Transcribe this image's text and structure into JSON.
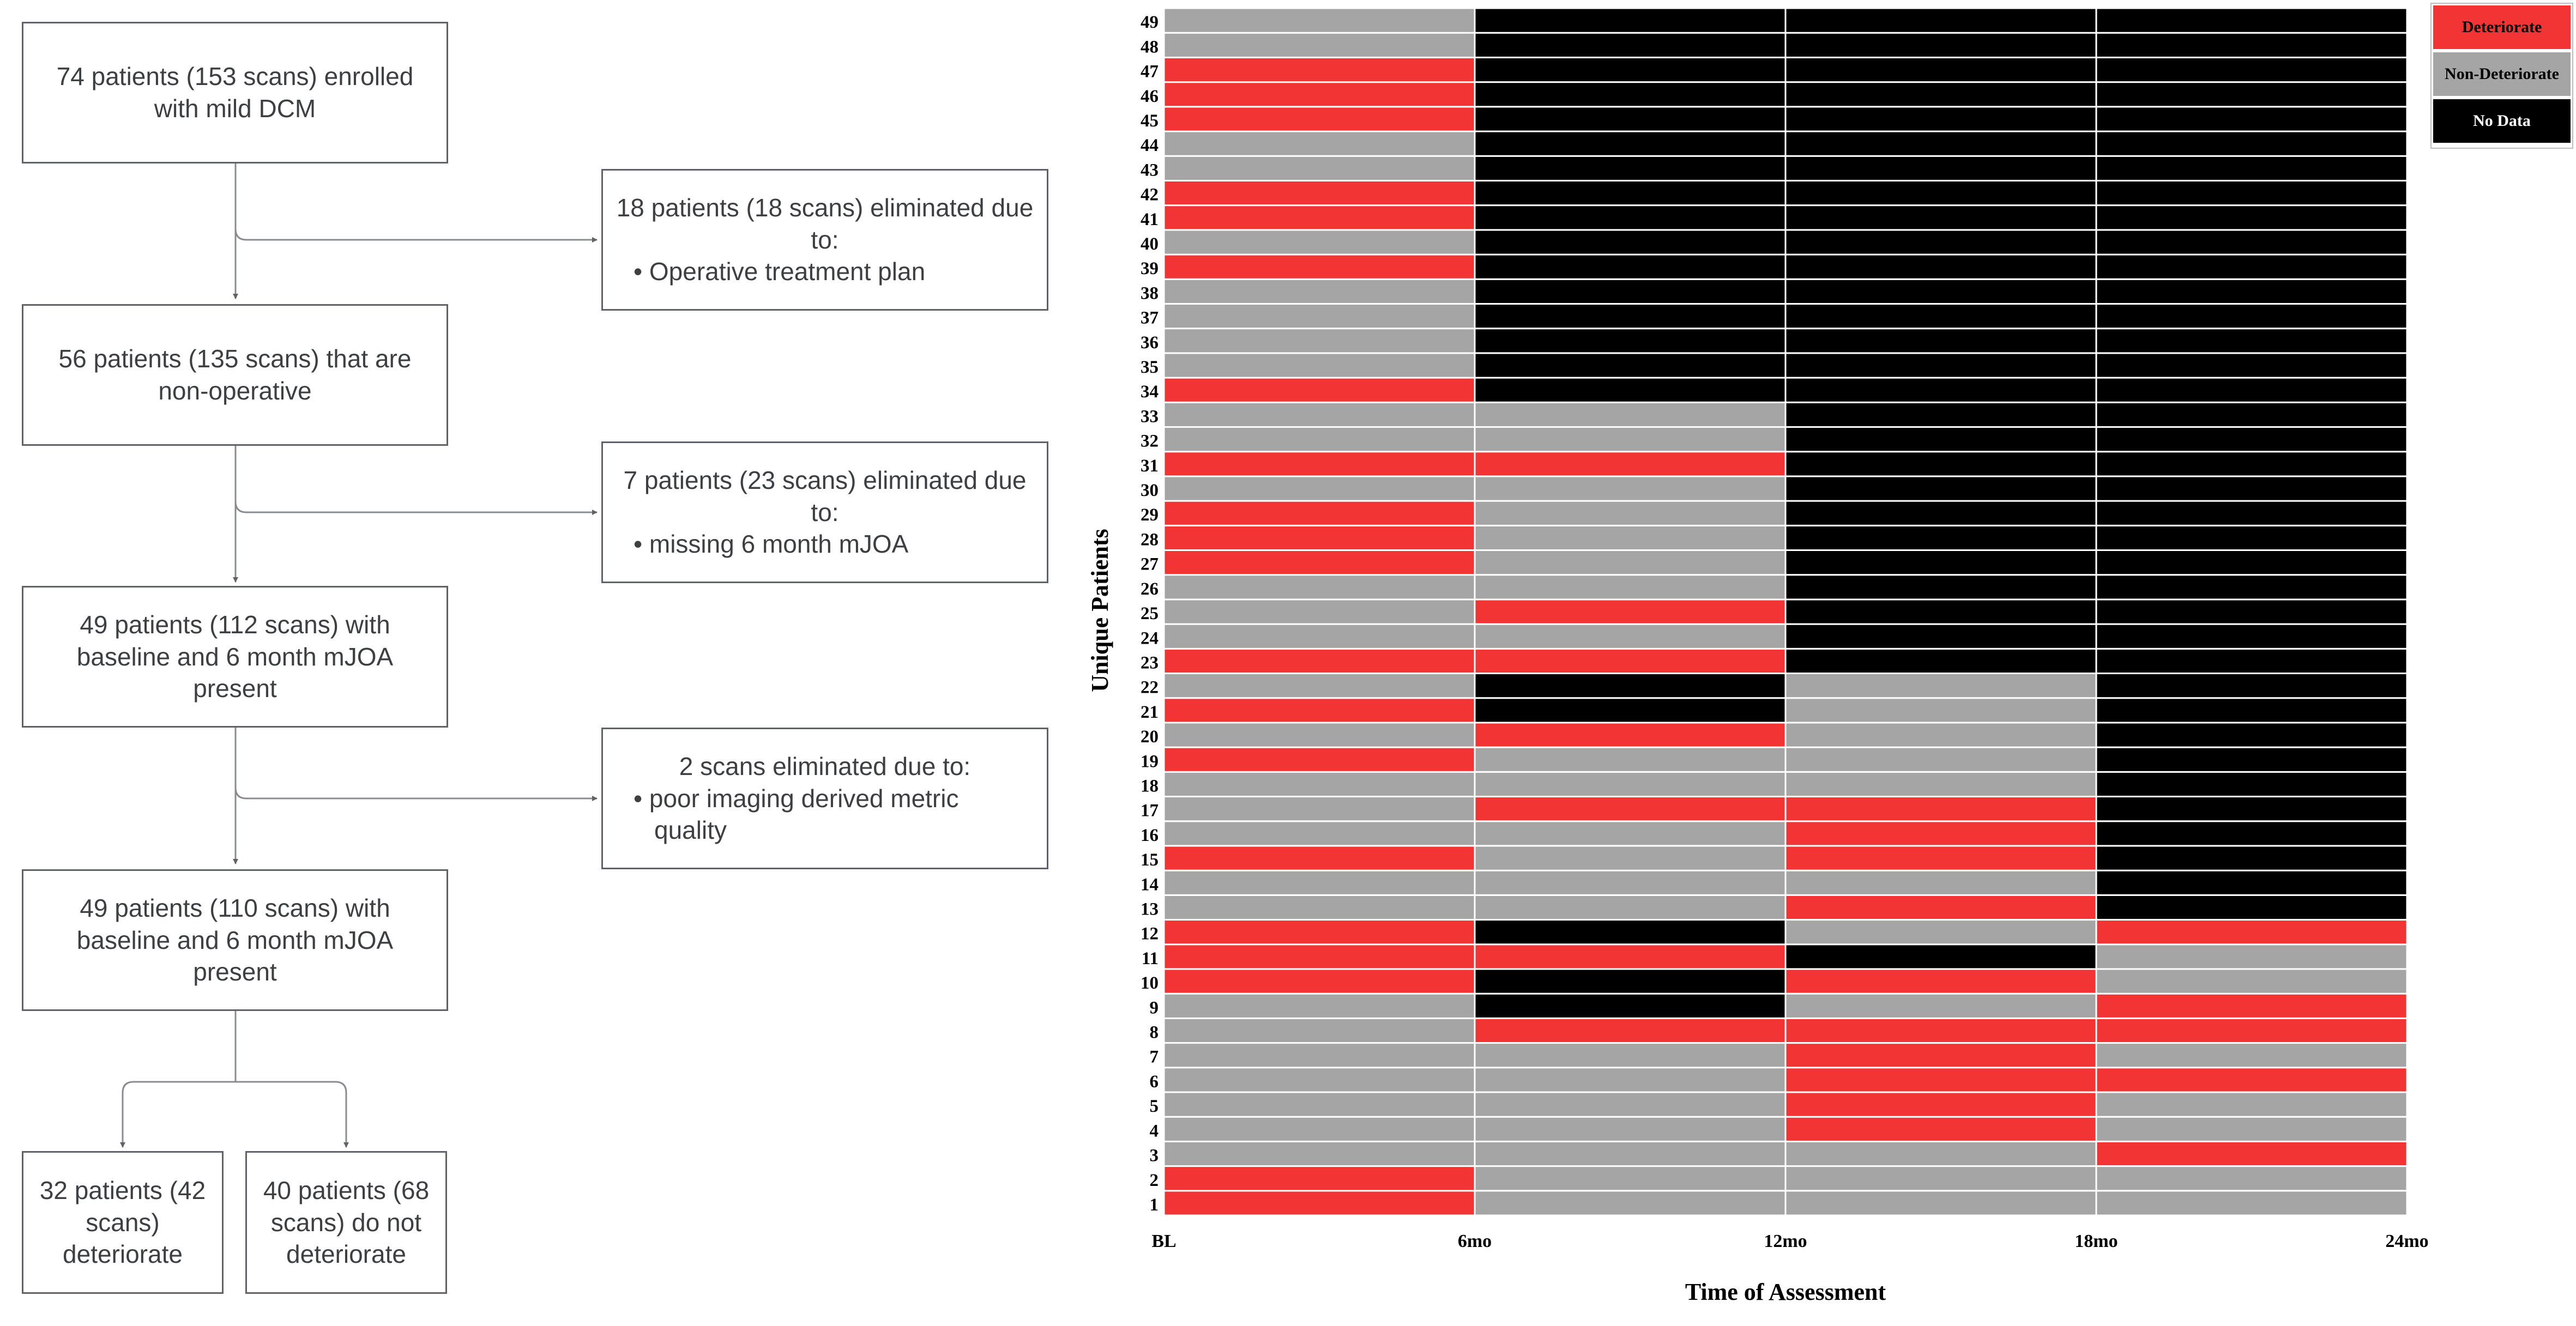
{
  "flowchart": {
    "boxes": {
      "enrolled": "74 patients (153 scans) enrolled with mild DCM",
      "nonoperative": "56 patients (135 scans) that are non-operative",
      "baseline1": "49 patients (112 scans) with baseline and 6 month mJOA present",
      "baseline2": "49 patients (110 scans) with baseline and 6 month mJOA present",
      "deteriorate": "32 patients (42 scans) deteriorate",
      "not_deteriorate": "40 patients (68 scans) do not deteriorate"
    },
    "exclusions": [
      {
        "head": "18 patients (18 scans) eliminated due to:",
        "item": "• Operative treatment plan"
      },
      {
        "head": "7 patients (23 scans) eliminated due to:",
        "item": "• missing 6 month mJOA"
      },
      {
        "head": "2 scans eliminated due to:",
        "item": "• poor imaging derived metric quality"
      }
    ]
  },
  "chart_data": {
    "type": "heatmap",
    "xlabel": "Time of Assessment",
    "ylabel": "Unique Patients",
    "x_ticks": [
      "BL",
      "6mo",
      "12mo",
      "18mo",
      "24mo"
    ],
    "intervals": [
      "BL–6mo",
      "6mo–12mo",
      "12mo–18mo",
      "18mo–24mo"
    ],
    "legend": [
      {
        "code": "D",
        "label": "Deteriorate",
        "color": "#f23434"
      },
      {
        "code": "N",
        "label": "Non-Deteriorate",
        "color": "#a5a5a5"
      },
      {
        "code": "X",
        "label": "No Data",
        "color": "#000000"
      }
    ],
    "rows": {
      "1": [
        "D",
        "N",
        "N",
        "N"
      ],
      "2": [
        "D",
        "N",
        "N",
        "N"
      ],
      "3": [
        "N",
        "N",
        "N",
        "D"
      ],
      "4": [
        "N",
        "N",
        "D",
        "N"
      ],
      "5": [
        "N",
        "N",
        "D",
        "N"
      ],
      "6": [
        "N",
        "N",
        "D",
        "D"
      ],
      "7": [
        "N",
        "N",
        "D",
        "N"
      ],
      "8": [
        "N",
        "D",
        "D",
        "D"
      ],
      "9": [
        "N",
        "X",
        "N",
        "D"
      ],
      "10": [
        "D",
        "X",
        "D",
        "N"
      ],
      "11": [
        "D",
        "D",
        "X",
        "N"
      ],
      "12": [
        "D",
        "X",
        "N",
        "D"
      ],
      "13": [
        "N",
        "N",
        "D",
        "X"
      ],
      "14": [
        "N",
        "N",
        "N",
        "X"
      ],
      "15": [
        "D",
        "N",
        "D",
        "X"
      ],
      "16": [
        "N",
        "N",
        "D",
        "X"
      ],
      "17": [
        "N",
        "D",
        "D",
        "X"
      ],
      "18": [
        "N",
        "N",
        "N",
        "X"
      ],
      "19": [
        "D",
        "N",
        "N",
        "X"
      ],
      "20": [
        "N",
        "D",
        "N",
        "X"
      ],
      "21": [
        "D",
        "X",
        "N",
        "X"
      ],
      "22": [
        "N",
        "X",
        "N",
        "X"
      ],
      "23": [
        "D",
        "D",
        "X",
        "X"
      ],
      "24": [
        "N",
        "N",
        "X",
        "X"
      ],
      "25": [
        "N",
        "D",
        "X",
        "X"
      ],
      "26": [
        "N",
        "N",
        "X",
        "X"
      ],
      "27": [
        "D",
        "N",
        "X",
        "X"
      ],
      "28": [
        "D",
        "N",
        "X",
        "X"
      ],
      "29": [
        "D",
        "N",
        "X",
        "X"
      ],
      "30": [
        "N",
        "N",
        "X",
        "X"
      ],
      "31": [
        "D",
        "D",
        "X",
        "X"
      ],
      "32": [
        "N",
        "N",
        "X",
        "X"
      ],
      "33": [
        "N",
        "N",
        "X",
        "X"
      ],
      "34": [
        "D",
        "X",
        "X",
        "X"
      ],
      "35": [
        "N",
        "X",
        "X",
        "X"
      ],
      "36": [
        "N",
        "X",
        "X",
        "X"
      ],
      "37": [
        "N",
        "X",
        "X",
        "X"
      ],
      "38": [
        "N",
        "X",
        "X",
        "X"
      ],
      "39": [
        "D",
        "X",
        "X",
        "X"
      ],
      "40": [
        "N",
        "X",
        "X",
        "X"
      ],
      "41": [
        "D",
        "X",
        "X",
        "X"
      ],
      "42": [
        "D",
        "X",
        "X",
        "X"
      ],
      "43": [
        "N",
        "X",
        "X",
        "X"
      ],
      "44": [
        "N",
        "X",
        "X",
        "X"
      ],
      "45": [
        "D",
        "X",
        "X",
        "X"
      ],
      "46": [
        "D",
        "X",
        "X",
        "X"
      ],
      "47": [
        "D",
        "X",
        "X",
        "X"
      ],
      "48": [
        "N",
        "X",
        "X",
        "X"
      ],
      "49": [
        "N",
        "X",
        "X",
        "X"
      ]
    }
  }
}
